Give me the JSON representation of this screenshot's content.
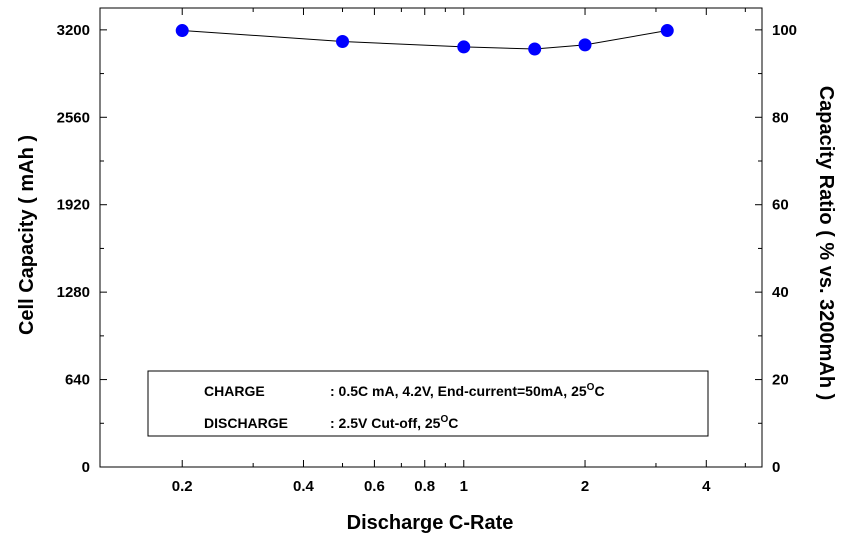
{
  "chart_data": {
    "type": "line",
    "xlabel": "Discharge C-Rate",
    "ylabel": "Cell Capacity ( mAh )",
    "y2label": "Capacity Ratio ( % vs. 3200mAh )",
    "x_scale": "log",
    "xlim": [
      0.125,
      5.5
    ],
    "ylim": [
      0,
      3360
    ],
    "y2lim": [
      0,
      105
    ],
    "x_ticks": [
      {
        "value": 0.2,
        "label": "0.2"
      },
      {
        "value": 0.4,
        "label": "0.4"
      },
      {
        "value": 0.6,
        "label": "0.6"
      },
      {
        "value": 0.8,
        "label": "0.8"
      },
      {
        "value": 1,
        "label": "1"
      },
      {
        "value": 2,
        "label": "2"
      },
      {
        "value": 4,
        "label": "4"
      }
    ],
    "x_minor_ticks": [
      0.3,
      0.5,
      0.7,
      0.9,
      3,
      5
    ],
    "y_ticks": [
      {
        "value": 0,
        "label": "0"
      },
      {
        "value": 640,
        "label": "640"
      },
      {
        "value": 1280,
        "label": "1280"
      },
      {
        "value": 1920,
        "label": "1920"
      },
      {
        "value": 2560,
        "label": "2560"
      },
      {
        "value": 3200,
        "label": "3200"
      }
    ],
    "y2_ticks": [
      {
        "value": 0,
        "label": "0"
      },
      {
        "value": 20,
        "label": "20"
      },
      {
        "value": 40,
        "label": "40"
      },
      {
        "value": 60,
        "label": "60"
      },
      {
        "value": 80,
        "label": "80"
      },
      {
        "value": 100,
        "label": "100"
      }
    ],
    "series": [
      {
        "x": [
          0.2,
          0.5,
          1.0,
          1.5,
          2.0,
          3.2
        ],
        "y": [
          3195,
          3115,
          3075,
          3060,
          3090,
          3195
        ]
      }
    ],
    "marker_color": "#0000ff",
    "line_color": "#000000",
    "grid": false,
    "legend": {
      "placement": "bottom-center",
      "rows": [
        {
          "label": "CHARGE",
          "value": ": 0.5C mA, 4.2V, End-current=50mA, 25",
          "sup": "O",
          "suffix": "C"
        },
        {
          "label": "DISCHARGE",
          "value": ": 2.5V Cut-off, 25",
          "sup": "O",
          "suffix": "C"
        }
      ]
    }
  }
}
